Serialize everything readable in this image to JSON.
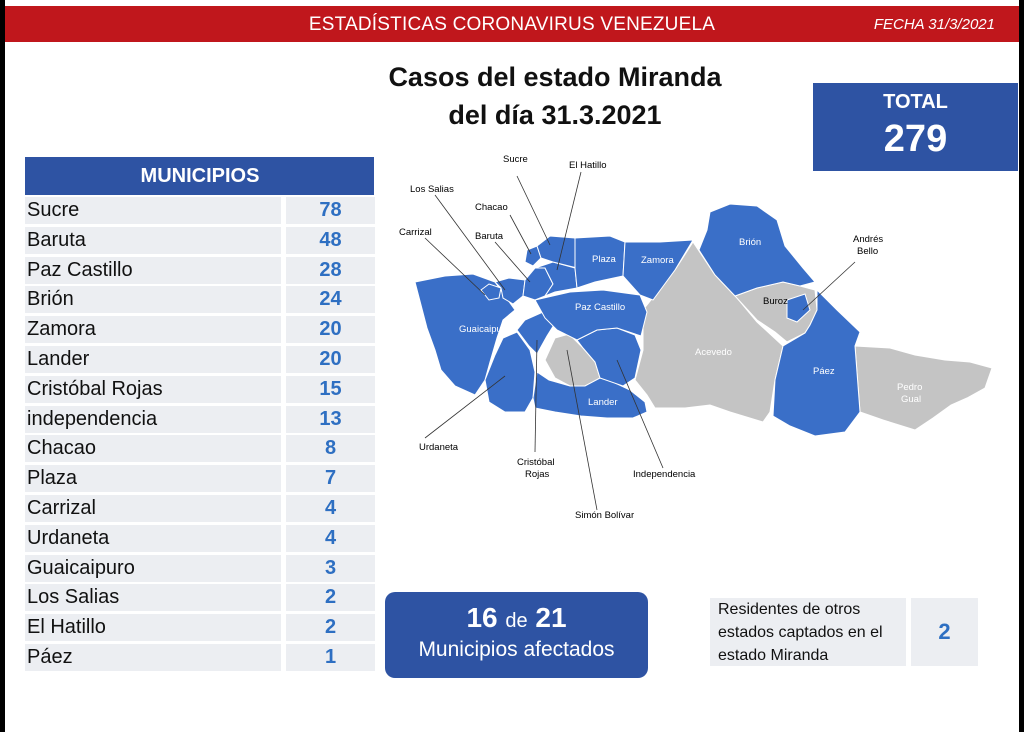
{
  "header": {
    "title": "ESTADÍSTICAS CORONAVIRUS VENEZUELA",
    "fecha": "FECHA 31/3/2021"
  },
  "heading": {
    "line1": "Casos del estado Miranda",
    "line2": "del día 31.3.2021"
  },
  "total": {
    "label": "TOTAL",
    "value": "279"
  },
  "municipios": {
    "header": "MUNICIPIOS",
    "rows": [
      {
        "name": "Sucre",
        "value": "78"
      },
      {
        "name": "Baruta",
        "value": "48"
      },
      {
        "name": "Paz Castillo",
        "value": "28"
      },
      {
        "name": "Brión",
        "value": "24"
      },
      {
        "name": "Zamora",
        "value": "20"
      },
      {
        "name": "Lander",
        "value": "20"
      },
      {
        "name": "Cristóbal Rojas",
        "value": "15"
      },
      {
        "name": "independencia",
        "value": "13"
      },
      {
        "name": "Chacao",
        "value": "8"
      },
      {
        "name": "Plaza",
        "value": "7"
      },
      {
        "name": "Carrizal",
        "value": "4"
      },
      {
        "name": "Urdaneta",
        "value": "4"
      },
      {
        "name": "Guaicaipuro",
        "value": "3"
      },
      {
        "name": "Los Salias",
        "value": "2"
      },
      {
        "name": "El Hatillo",
        "value": "2"
      },
      {
        "name": "Páez",
        "value": "1"
      }
    ]
  },
  "afectados": {
    "count": "16",
    "de": "de",
    "of": "21",
    "label": "Municipios afectados"
  },
  "residentes": {
    "line1": "Residentes de otros",
    "line2": "estados captados en el",
    "line3": "estado Miranda",
    "value": "2"
  },
  "map_labels": {
    "sucre": "Sucre",
    "el_hatillo": "El Hatillo",
    "los_salias": "Los Salias",
    "chacao": "Chacao",
    "carrizal": "Carrizal",
    "baruta": "Baruta",
    "plaza": "Plaza",
    "zamora": "Zamora",
    "brion": "Brión",
    "andres": "Andrés",
    "bello": "Bello",
    "buroz": "Buroz",
    "paz_castillo": "Paz Castillo",
    "guaicaipuro": "Guaicaipuro",
    "acevedo": "Acevedo",
    "paez": "Páez",
    "pedro": "Pedro",
    "gual": "Gual",
    "lander": "Lander",
    "urdaneta": "Urdaneta",
    "cristobal": "Cristóbal",
    "rojas": "Rojas",
    "independencia": "Independencia",
    "simon_bolivar": "Simón Bolívar"
  },
  "colors": {
    "header_red": "#c0171c",
    "brand_blue": "#2e53a3",
    "value_blue": "#2e6fc2",
    "map_affected": "#3a6fc8",
    "map_unaffected": "#c4c4c4"
  }
}
